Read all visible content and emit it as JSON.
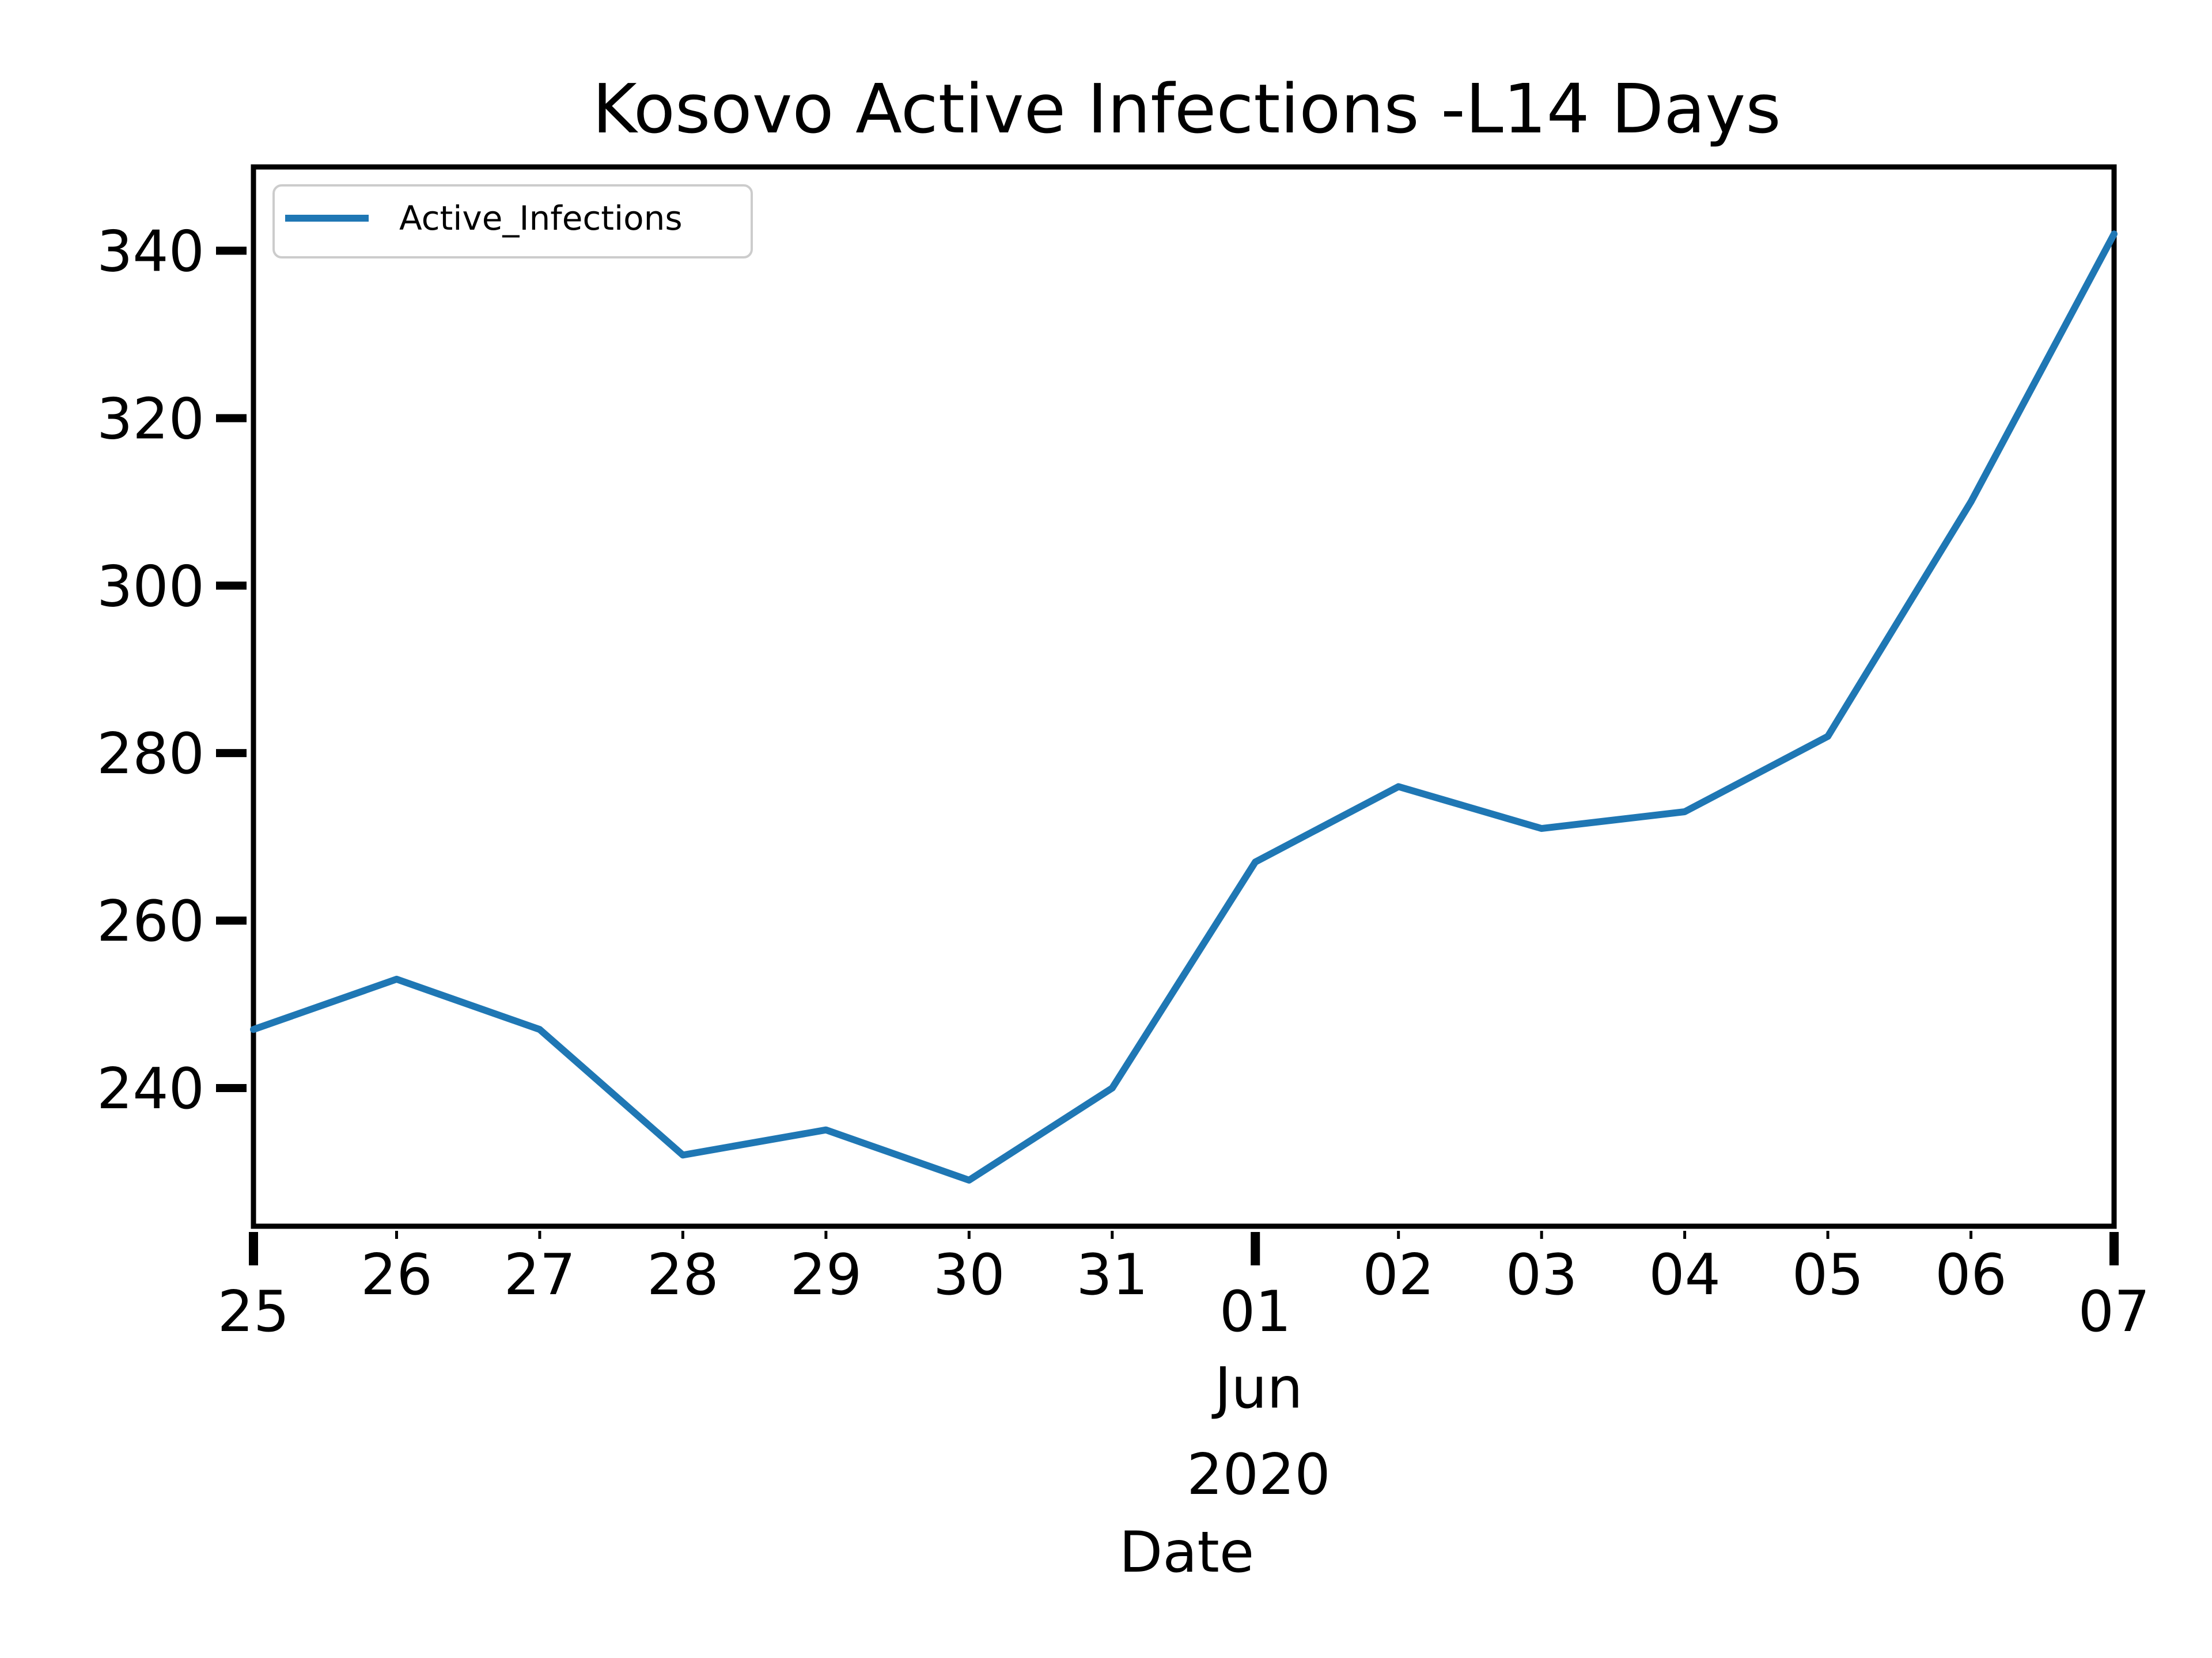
{
  "chart_data": {
    "type": "line",
    "title": "Kosovo Active Infections -L14 Days",
    "xlabel": "Date",
    "ylabel": "",
    "x": [
      "2020-05-25",
      "2020-05-26",
      "2020-05-27",
      "2020-05-28",
      "2020-05-29",
      "2020-05-30",
      "2020-05-31",
      "2020-06-01",
      "2020-06-02",
      "2020-06-03",
      "2020-06-04",
      "2020-06-05",
      "2020-06-06",
      "2020-06-07"
    ],
    "series": [
      {
        "name": "Active_Infections",
        "color": "#1f77b4",
        "values": [
          247,
          253,
          247,
          232,
          235,
          229,
          240,
          267,
          276,
          271,
          273,
          282,
          310,
          342
        ]
      }
    ],
    "ylim": [
      223.5,
      350
    ],
    "yticks": [
      240,
      260,
      280,
      300,
      320,
      340
    ],
    "xtick_labels": [
      "25",
      "26",
      "27",
      "28",
      "29",
      "30",
      "31",
      "01",
      "02",
      "03",
      "04",
      "05",
      "06",
      "07"
    ],
    "x_major_ticks": [
      "25",
      "01",
      "07"
    ],
    "x_secondary_label": [
      "Jun",
      "2020"
    ],
    "legend": {
      "entries": [
        "Active_Infections"
      ],
      "placement": "top-left"
    },
    "grid": false
  }
}
